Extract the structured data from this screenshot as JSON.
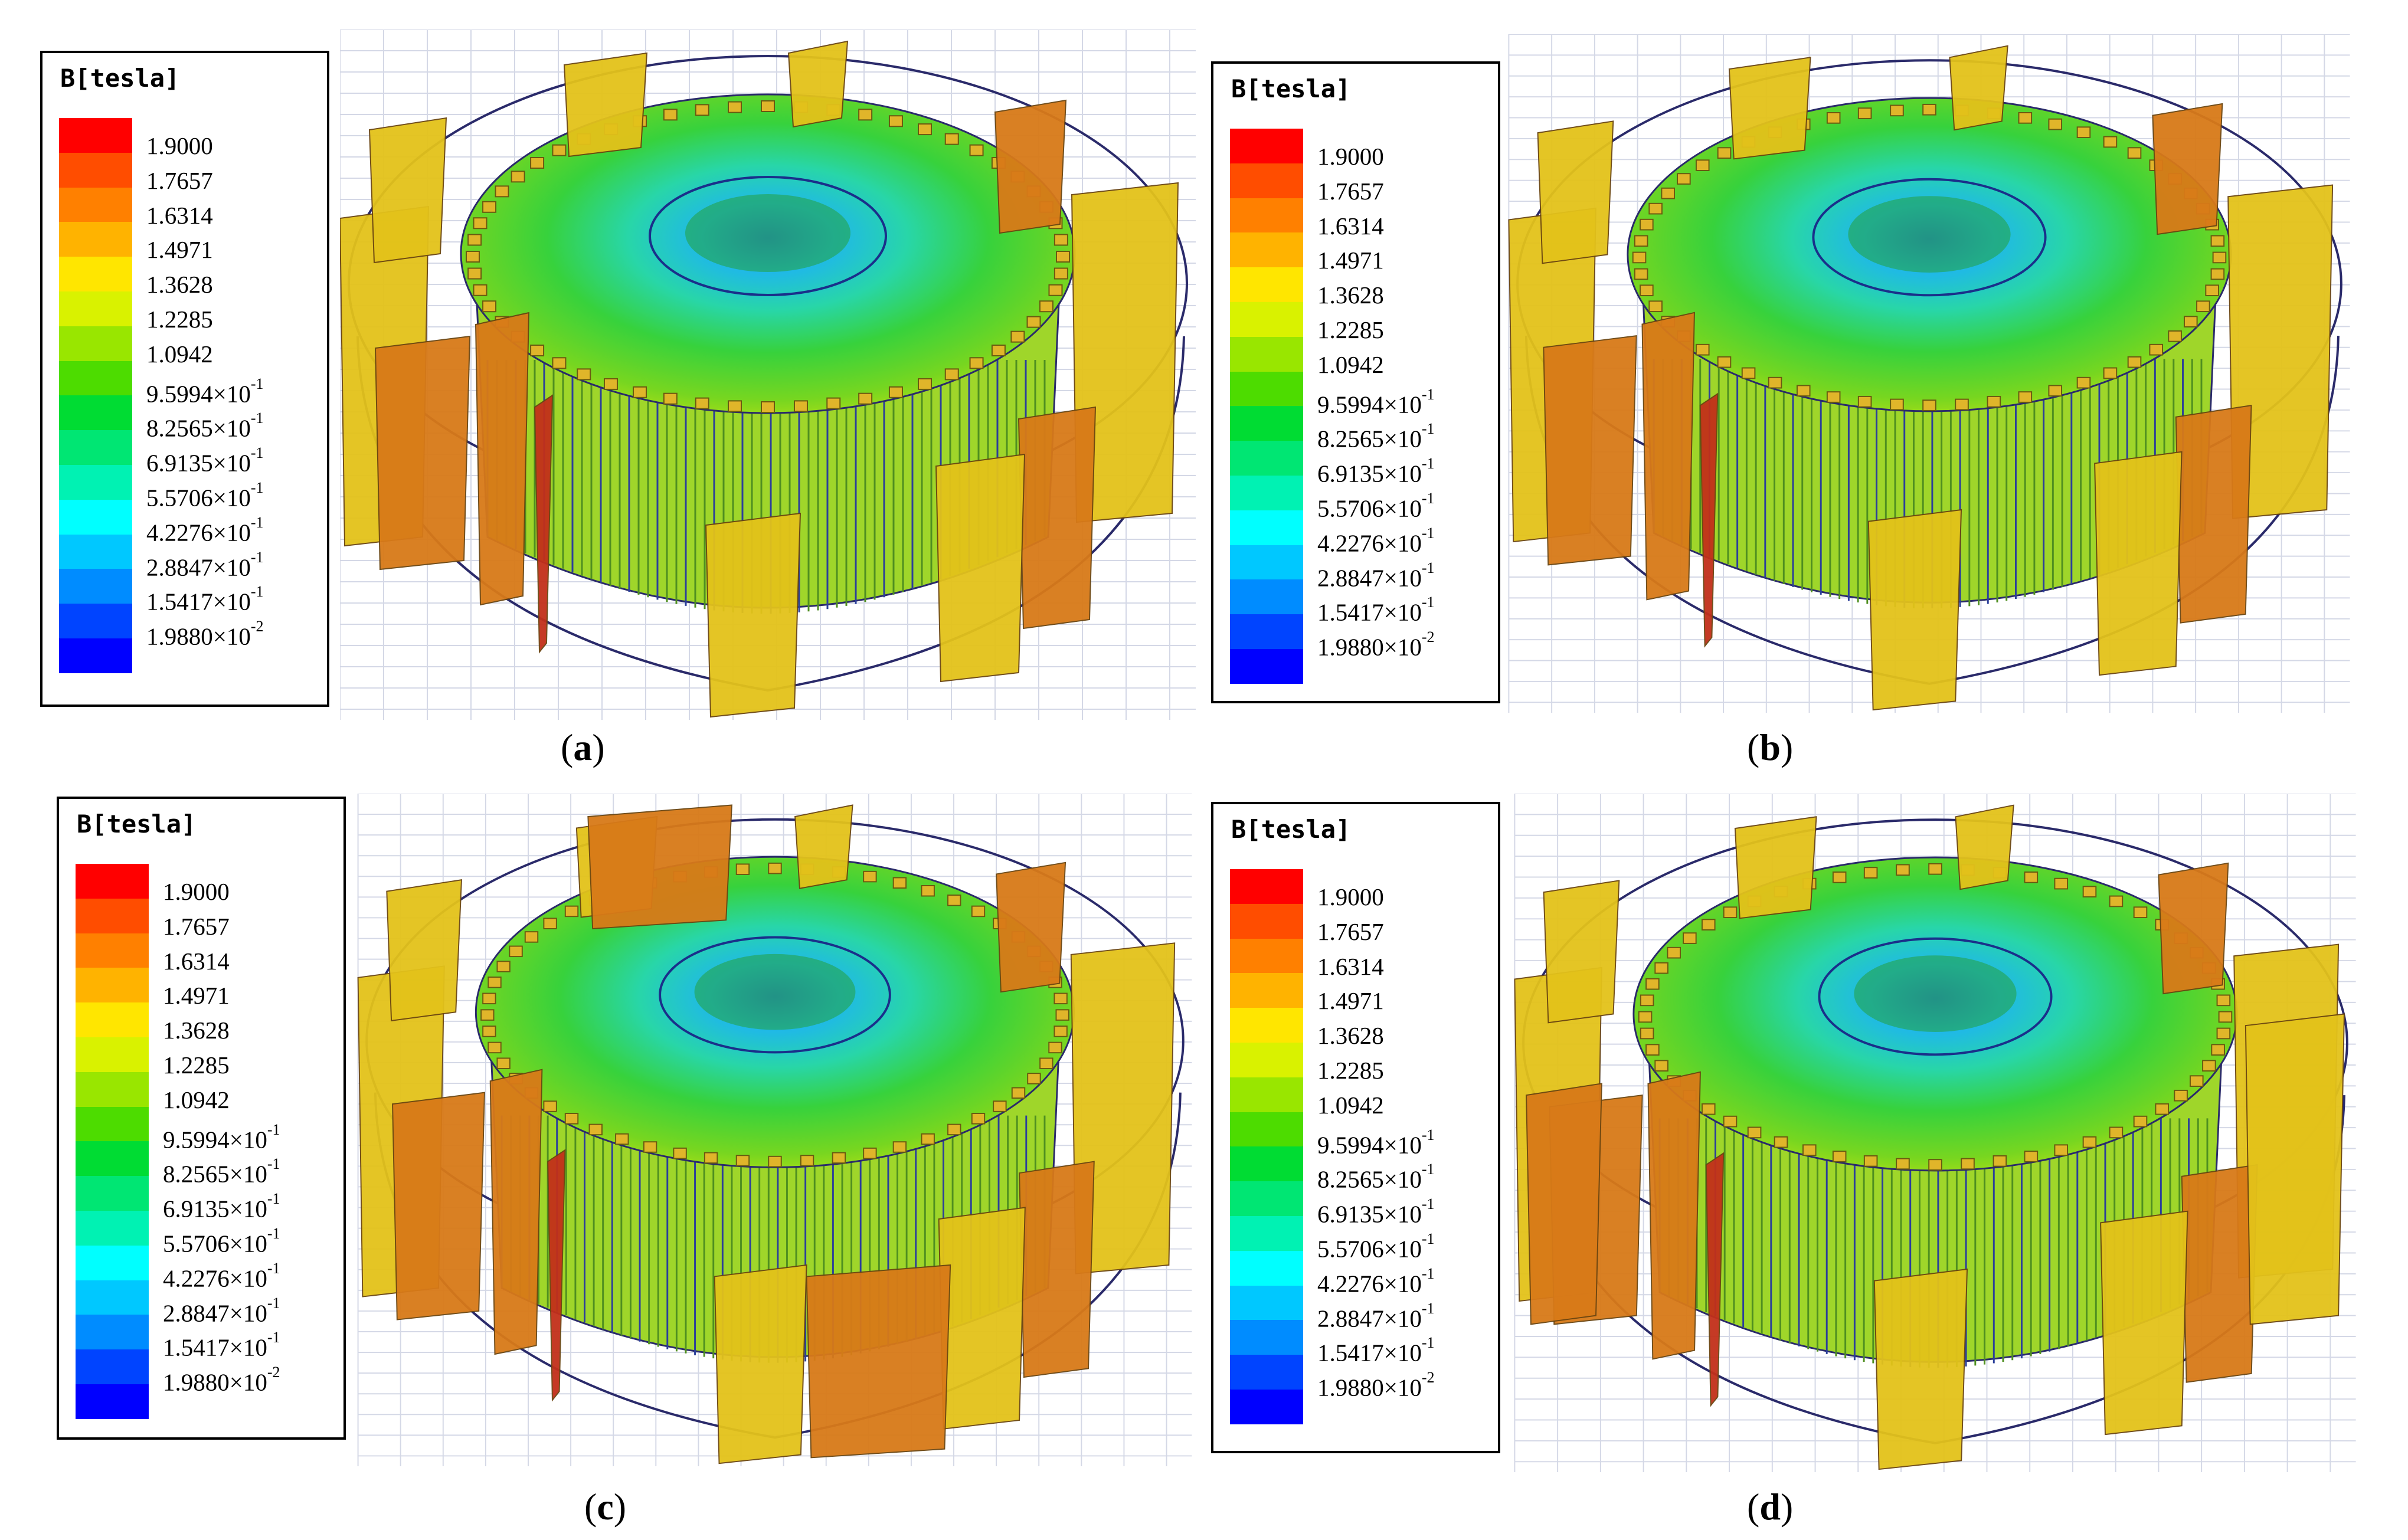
{
  "legend": {
    "title": "B[tesla]",
    "entries": [
      {
        "mantissa": "1.9000",
        "exp": ""
      },
      {
        "mantissa": "1.7657",
        "exp": ""
      },
      {
        "mantissa": "1.6314",
        "exp": ""
      },
      {
        "mantissa": "1.4971",
        "exp": ""
      },
      {
        "mantissa": "1.3628",
        "exp": ""
      },
      {
        "mantissa": "1.2285",
        "exp": ""
      },
      {
        "mantissa": "1.0942",
        "exp": ""
      },
      {
        "mantissa": "9.5994×10",
        "exp": "-1"
      },
      {
        "mantissa": "8.2565×10",
        "exp": "-1"
      },
      {
        "mantissa": "6.9135×10",
        "exp": "-1"
      },
      {
        "mantissa": "5.5706×10",
        "exp": "-1"
      },
      {
        "mantissa": "4.2276×10",
        "exp": "-1"
      },
      {
        "mantissa": "2.8847×10",
        "exp": "-1"
      },
      {
        "mantissa": "1.5417×10",
        "exp": "-1"
      },
      {
        "mantissa": "1.9880×10",
        "exp": "-2"
      }
    ],
    "colors": [
      "#ff0000",
      "#ff4d00",
      "#ff8000",
      "#ffb300",
      "#ffe600",
      "#d9f200",
      "#99e600",
      "#4ddc00",
      "#00dc33",
      "#00e673",
      "#00f2b3",
      "#00ffff",
      "#00c8ff",
      "#008cff",
      "#0044ff",
      "#0000ff"
    ]
  },
  "panels": [
    {
      "id": "a",
      "caption": "a"
    },
    {
      "id": "b",
      "caption": "b"
    },
    {
      "id": "c",
      "caption": "c"
    },
    {
      "id": "d",
      "caption": "d"
    }
  ],
  "colors": {
    "orange_block": "#d87a18",
    "yellow_block": "#e3c21a",
    "grid": "#d4d8e6",
    "outline": "#2a2a6a"
  }
}
